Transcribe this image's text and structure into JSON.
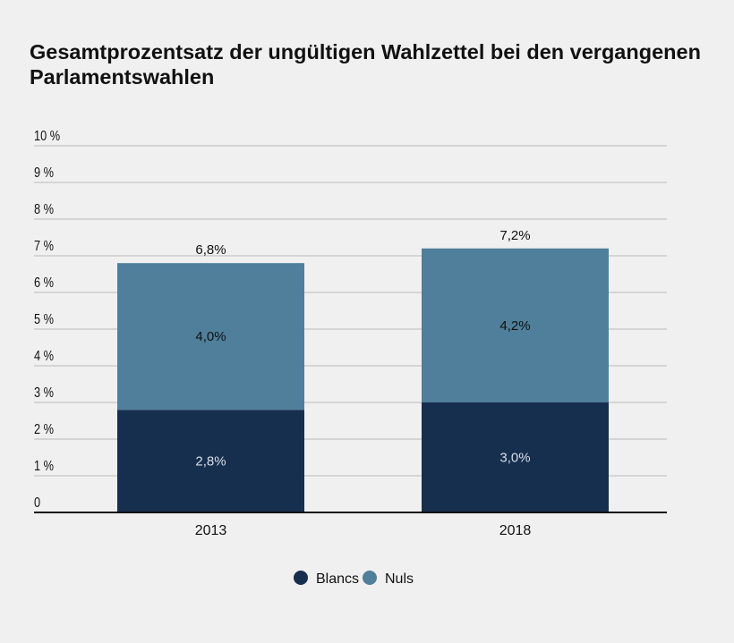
{
  "chart_data": {
    "type": "bar",
    "stacked": true,
    "title": "Gesamtprozentsatz der ungültigen Wahlzettel bei den vergangenen Parlamentswahlen",
    "categories": [
      "2013",
      "2018"
    ],
    "series": [
      {
        "name": "Blancs",
        "values": [
          2.8,
          3.0
        ],
        "labels": [
          "2,8%",
          "3,0%"
        ],
        "color": "#172f4f"
      },
      {
        "name": "Nuls",
        "values": [
          4.0,
          4.2
        ],
        "labels": [
          "4,0%",
          "4,2%"
        ],
        "color": "#4f7f9b"
      }
    ],
    "totals": [
      6.8,
      7.2
    ],
    "total_labels": [
      "6,8%",
      "7,2%"
    ],
    "yticks": [
      "0",
      "1 %",
      "2 %",
      "3 %",
      "4 %",
      "5 %",
      "6 %",
      "7 %",
      "8 %",
      "9 %",
      "10 %"
    ],
    "ylim": [
      0,
      10
    ],
    "grid": true,
    "legend": "bottom"
  }
}
